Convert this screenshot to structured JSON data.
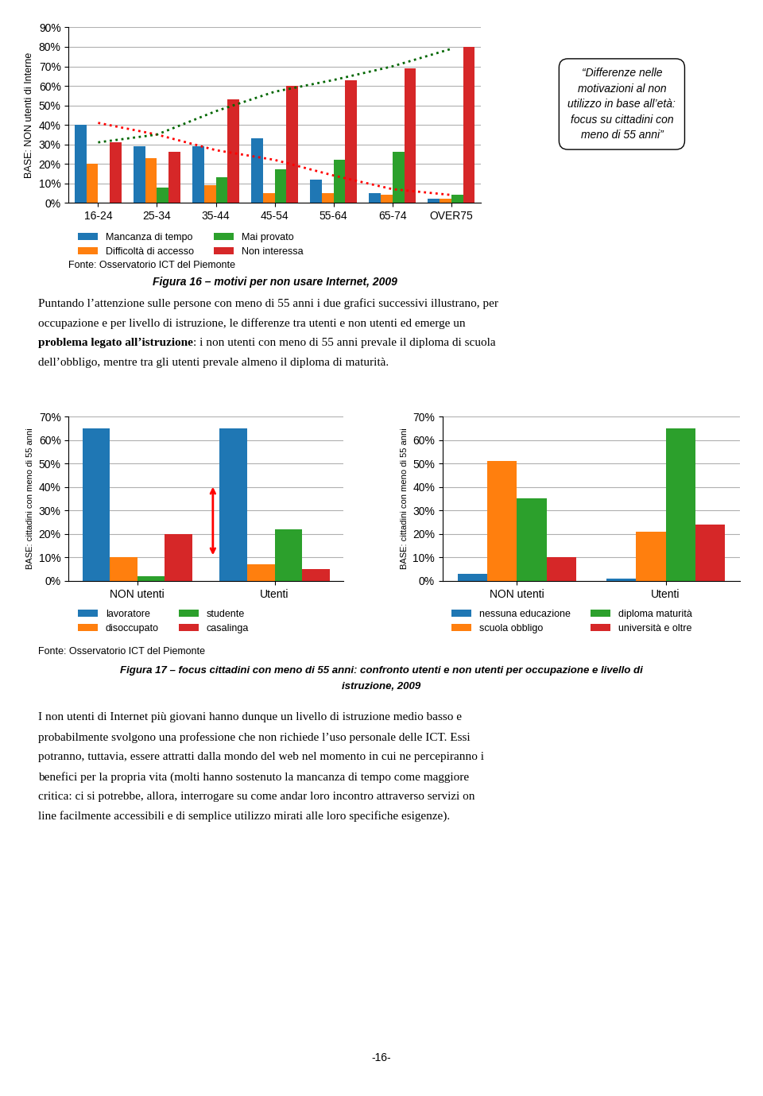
{
  "chart_data": [
    {
      "type": "bar",
      "title": "Figura 16 – motivi per non usare Internet, 2009",
      "ylabel": "BASE: NON utenti di Interne",
      "categories": [
        "16-24",
        "25-34",
        "35-44",
        "45-54",
        "55-64",
        "65-74",
        "OVER75"
      ],
      "series": [
        {
          "name": "Mancanza di tempo",
          "values": [
            40,
            29,
            29,
            33,
            12,
            5,
            2
          ]
        },
        {
          "name": "Difficoltà di accesso",
          "values": [
            20,
            23,
            9,
            5,
            5,
            4,
            2
          ]
        },
        {
          "name": "Mai provato",
          "values": [
            0,
            8,
            13,
            17,
            22,
            26,
            4
          ]
        },
        {
          "name": "Non interessa",
          "values": [
            31,
            26,
            53,
            60,
            63,
            69,
            80
          ]
        },
        {
          "type": "line",
          "line_style": "dotted",
          "color": "#FF0000",
          "values": [
            41,
            35,
            27,
            22,
            14,
            7,
            4
          ]
        },
        {
          "type": "line",
          "line_style": "dotted",
          "color": "#006600",
          "values": [
            31,
            35,
            47,
            57,
            63,
            70,
            79
          ]
        }
      ],
      "ylim": [
        0,
        90
      ],
      "yticks": [
        {
          "value": 0,
          "label": "0%"
        },
        {
          "value": 10,
          "label": "10%"
        },
        {
          "value": 20,
          "label": "20%"
        },
        {
          "value": 30,
          "label": "30%"
        },
        {
          "value": 40,
          "label": "40%"
        },
        {
          "value": 50,
          "label": "50%"
        },
        {
          "value": 60,
          "label": "60%"
        },
        {
          "value": 70,
          "label": "70%"
        },
        {
          "value": 80,
          "label": "80%"
        },
        {
          "value": 90,
          "label": "90%"
        }
      ],
      "grid": true,
      "legend": "upper left",
      "annotations": [
        "Fonte: Osservatorio ICT del Piemonte",
        "“Differenze nelle\nmotivazioni al non\nutilizzo in base all’età:\nfocus su cittadini con\nmeno di 55 anni”"
      ]
    },
    {
      "type": "bar",
      "ylabel": "BASE: cittadini con meno di 55 anni",
      "categories": [
        "NON utenti",
        "Utenti"
      ],
      "series": [
        {
          "name": "lavoratore",
          "values": [
            65,
            65
          ]
        },
        {
          "name": "disoccupato",
          "values": [
            10,
            7
          ]
        },
        {
          "name": "studente",
          "values": [
            2,
            22
          ]
        },
        {
          "name": "casalinga",
          "values": [
            20,
            5
          ]
        }
      ],
      "ylim": [
        0,
        70
      ],
      "yticks": [
        {
          "value": 0,
          "label": "0%"
        },
        {
          "value": 10,
          "label": "10%"
        },
        {
          "value": 20,
          "label": "20%"
        },
        {
          "value": 30,
          "label": "30%"
        },
        {
          "value": 40,
          "label": "40%"
        },
        {
          "value": 50,
          "label": "50%"
        },
        {
          "value": 60,
          "label": "60%"
        },
        {
          "value": 70,
          "label": "70%"
        }
      ],
      "grid": true,
      "legend": "upper left",
      "arrow": {
        "x": 0.55,
        "y": [
          10,
          41
        ],
        "color": "#FF0000"
      }
    },
    {
      "type": "bar",
      "ylabel": "BASE: cittadini con meno di 55 anni",
      "categories": [
        "NON utenti",
        "Utenti"
      ],
      "series": [
        {
          "name": "nessuna educazione",
          "values": [
            3,
            1
          ]
        },
        {
          "name": "scuola obbligo",
          "values": [
            51,
            21
          ]
        },
        {
          "name": "diploma maturità",
          "values": [
            35,
            65
          ]
        },
        {
          "name": "università e oltre",
          "values": [
            10,
            24
          ]
        }
      ],
      "ylim": [
        0,
        70
      ],
      "yticks": [
        {
          "value": 0,
          "label": "0%"
        },
        {
          "value": 10,
          "label": "10%"
        },
        {
          "value": 20,
          "label": "20%"
        },
        {
          "value": 30,
          "label": "30%"
        },
        {
          "value": 40,
          "label": "40%"
        },
        {
          "value": 50,
          "label": "50%"
        },
        {
          "value": 60,
          "label": "60%"
        },
        {
          "value": 70,
          "label": "70%"
        }
      ],
      "grid": true,
      "legend": "upper left"
    }
  ],
  "annotations": [
    [
      [
        "Puntando l’attenzione sulle persone con meno di 55 anni i due grafici successivi illustrano, per"
      ],
      [
        "occupazione e per livello di istruzione, le differenze tra utenti e non utenti ed emerge un"
      ],
      [
        "problema legato all’istruzione",
        ": i non utenti con meno di 55 anni prevale il diploma di scuola"
      ],
      [
        "dell’obbligo, mentre tra gli utenti prevale almeno il diploma di maturità."
      ]
    ],
    [
      [
        "Fonte: Osservatorio ICT del Piemonte"
      ]
    ],
    [
      [
        "Figura 17 – focus cittadini con meno di 55 anni: confronto utenti e non utenti per occupazione e livello di"
      ],
      [
        "istruzione, 2009"
      ]
    ],
    [
      [
        "I non utenti di Internet più giovani hanno dunque un livello di istruzione medio basso e"
      ],
      [
        "probabilmente svolgono una professione che non richiede l’uso personale delle ICT. Essi"
      ],
      [
        "potranno, tuttavia, essere attratti dalla mondo del web nel momento in cui ne percepiranno i"
      ],
      [
        "benefici per la propria vita (molti hanno sostenuto la mancanza di tempo come maggiore"
      ],
      [
        "critica: ci si potrebbe, allora, interrogare su come andar loro incontro attraverso servizi on"
      ],
      [
        "line facilmente accessibili e di semplice utilizzo mirati alle loro specifiche esigenze)."
      ]
    ],
    [
      [
        "-16-"
      ]
    ]
  ]
}
